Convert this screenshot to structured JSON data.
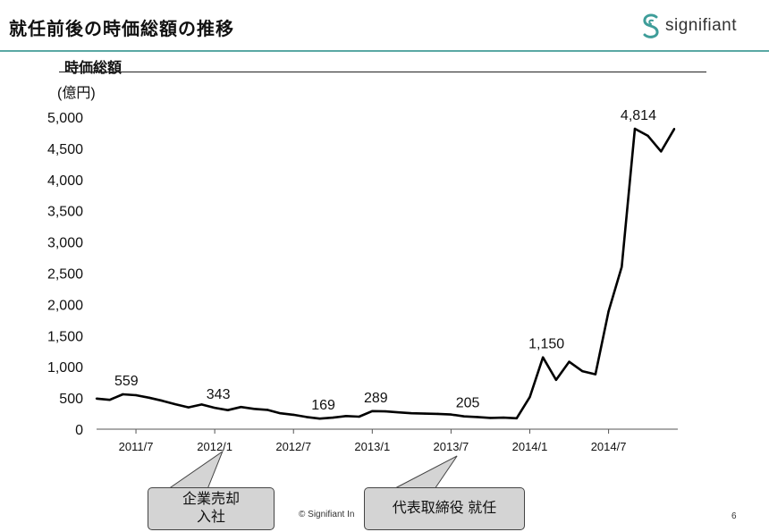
{
  "header": {
    "title": "就任前後の時価総額の推移",
    "logo_text": "signifiant",
    "logo_icon": "signifiant-s-icon"
  },
  "chart_data": {
    "type": "line",
    "title": "時価総額",
    "ylabel": "(億円)",
    "xlabel": "",
    "ylim": [
      0,
      5000
    ],
    "yticks": [
      0,
      500,
      1000,
      1500,
      2000,
      2500,
      3000,
      3500,
      4000,
      4500,
      5000
    ],
    "ytick_labels": [
      "0",
      "500",
      "1,000",
      "1,500",
      "2,000",
      "2,500",
      "3,000",
      "3,500",
      "4,000",
      "4,500",
      "5,000"
    ],
    "xtick_labels": [
      "2011/7",
      "2012/1",
      "2012/7",
      "2013/1",
      "2013/7",
      "2014/1",
      "2014/7"
    ],
    "xtick_index": [
      3,
      9,
      15,
      21,
      27,
      33,
      39
    ],
    "grid": false,
    "series": [
      {
        "values": [
          490,
          470,
          559,
          545,
          505,
          455,
          400,
          350,
          395,
          343,
          305,
          355,
          325,
          310,
          255,
          230,
          195,
          169,
          185,
          210,
          200,
          289,
          285,
          270,
          255,
          250,
          245,
          235,
          205,
          195,
          180,
          185,
          175,
          515,
          1150,
          790,
          1080,
          930,
          880,
          1890,
          2600,
          4814,
          4700,
          4450,
          4810
        ]
      }
    ],
    "annotations": [
      {
        "index": 2,
        "label": "559"
      },
      {
        "index": 9,
        "label": "343"
      },
      {
        "index": 17,
        "label": "169"
      },
      {
        "index": 21,
        "label": "289"
      },
      {
        "index": 28,
        "label": "205"
      },
      {
        "index": 34,
        "label": "1,150"
      },
      {
        "index": 41,
        "label": "4,814"
      }
    ]
  },
  "callouts": [
    {
      "label_line1": "企業売却",
      "label_line2": "入社",
      "index": 10
    },
    {
      "label": "代表取締役 就任",
      "index": 28
    }
  ],
  "footer": {
    "copyright": "© Signifiant In",
    "page_number": "6"
  }
}
